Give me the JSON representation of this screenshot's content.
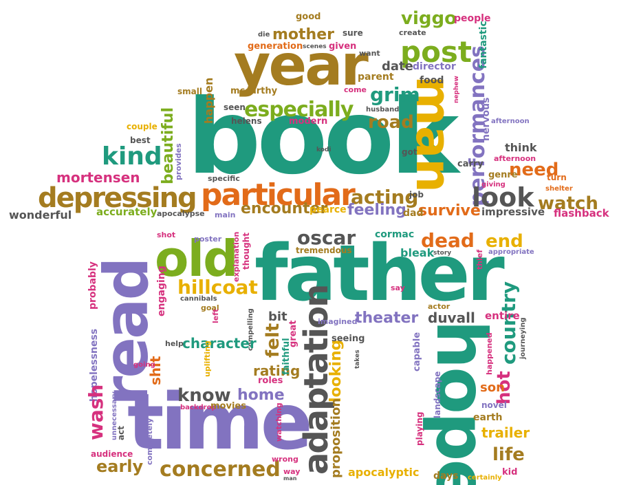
{
  "colors": {
    "brown": "#a47c20",
    "orange": "#e26b19",
    "green": "#7cad1e",
    "teal": "#1f9a7e",
    "purple": "#8273c0",
    "pink": "#d6317e",
    "gold": "#e8b000",
    "gray": "#555555"
  },
  "words": [
    {
      "text": "book",
      "color": "teal",
      "orient": "h"
    },
    {
      "text": "year",
      "color": "brown",
      "orient": "h"
    },
    {
      "text": "man",
      "color": "gold",
      "orient": "v"
    },
    {
      "text": "father",
      "color": "teal",
      "orient": "h"
    },
    {
      "text": "time",
      "color": "purple",
      "orient": "h"
    },
    {
      "text": "hope",
      "color": "teal",
      "orient": "v"
    },
    {
      "text": "read",
      "color": "purple",
      "orient": "v"
    },
    {
      "text": "old",
      "color": "green",
      "orient": "h"
    },
    {
      "text": "adaptation",
      "color": "gray",
      "orient": "v"
    },
    {
      "text": "particular",
      "color": "orange",
      "orient": "h"
    },
    {
      "text": "depressing",
      "color": "brown",
      "orient": "h"
    },
    {
      "text": "especially",
      "color": "green",
      "orient": "h"
    },
    {
      "text": "post",
      "color": "green",
      "orient": "h"
    },
    {
      "text": "performances",
      "color": "purple",
      "orient": "v"
    },
    {
      "text": "kind",
      "color": "teal",
      "orient": "h"
    },
    {
      "text": "look",
      "color": "gray",
      "orient": "h"
    },
    {
      "text": "watch",
      "color": "brown",
      "orient": "h"
    },
    {
      "text": "need",
      "color": "orange",
      "orient": "h"
    },
    {
      "text": "mother",
      "color": "brown",
      "orient": "h"
    },
    {
      "text": "viggo",
      "color": "green",
      "orient": "h"
    },
    {
      "text": "grim",
      "color": "teal",
      "orient": "h"
    },
    {
      "text": "road",
      "color": "brown",
      "orient": "h"
    },
    {
      "text": "date",
      "color": "gray",
      "orient": "h"
    },
    {
      "text": "acting",
      "color": "brown",
      "orient": "h"
    },
    {
      "text": "encounter",
      "color": "brown",
      "orient": "h"
    },
    {
      "text": "feeling",
      "color": "purple",
      "orient": "h"
    },
    {
      "text": "survive",
      "color": "orange",
      "orient": "h"
    },
    {
      "text": "mortensen",
      "color": "pink",
      "orient": "h"
    },
    {
      "text": "beautiful",
      "color": "green",
      "orient": "v"
    },
    {
      "text": "happen",
      "color": "brown",
      "orient": "v"
    },
    {
      "text": "fantastic",
      "color": "teal",
      "orient": "v"
    },
    {
      "text": "generation",
      "color": "orange",
      "orient": "h"
    },
    {
      "text": "given",
      "color": "pink",
      "orient": "h"
    },
    {
      "text": "good",
      "color": "brown",
      "orient": "h"
    },
    {
      "text": "sure",
      "color": "gray",
      "orient": "h"
    },
    {
      "text": "die",
      "color": "gray",
      "orient": "h"
    },
    {
      "text": "scenes",
      "color": "gray",
      "orient": "h"
    },
    {
      "text": "people",
      "color": "pink",
      "orient": "h"
    },
    {
      "text": "create",
      "color": "gray",
      "orient": "h"
    },
    {
      "text": "want",
      "color": "gray",
      "orient": "h"
    },
    {
      "text": "food",
      "color": "gray",
      "orient": "h"
    },
    {
      "text": "director",
      "color": "purple",
      "orient": "h"
    },
    {
      "text": "parent",
      "color": "brown",
      "orient": "h"
    },
    {
      "text": "nephew",
      "color": "pink",
      "orient": "v"
    },
    {
      "text": "come",
      "color": "pink",
      "orient": "h"
    },
    {
      "text": "husband",
      "color": "gray",
      "orient": "h"
    },
    {
      "text": "afternoon",
      "color": "purple",
      "orient": "h"
    },
    {
      "text": "nervous",
      "color": "purple",
      "orient": "v"
    },
    {
      "text": "mccarthy",
      "color": "brown",
      "orient": "h"
    },
    {
      "text": "small",
      "color": "brown",
      "orient": "h"
    },
    {
      "text": "seen",
      "color": "gray",
      "orient": "h"
    },
    {
      "text": "helens",
      "color": "gray",
      "orient": "h"
    },
    {
      "text": "modern",
      "color": "pink",
      "orient": "h"
    },
    {
      "text": "couple",
      "color": "gold",
      "orient": "h"
    },
    {
      "text": "best",
      "color": "gray",
      "orient": "h"
    },
    {
      "text": "provides",
      "color": "purple",
      "orient": "v"
    },
    {
      "text": "specific",
      "color": "gray",
      "orient": "h"
    },
    {
      "text": "kodi",
      "color": "gray",
      "orient": "h"
    },
    {
      "text": "got",
      "color": "gray",
      "orient": "h"
    },
    {
      "text": "think",
      "color": "gray",
      "orient": "h"
    },
    {
      "text": "afternoon",
      "color": "pink",
      "orient": "h"
    },
    {
      "text": "carry",
      "color": "gray",
      "orient": "h"
    },
    {
      "text": "genre",
      "color": "brown",
      "orient": "h"
    },
    {
      "text": "turn",
      "color": "orange",
      "orient": "h"
    },
    {
      "text": "giving",
      "color": "pink",
      "orient": "h"
    },
    {
      "text": "shelter",
      "color": "orange",
      "orient": "h"
    },
    {
      "text": "job",
      "color": "gray",
      "orient": "h"
    },
    {
      "text": "impressive",
      "color": "gray",
      "orient": "h"
    },
    {
      "text": "flashback",
      "color": "pink",
      "orient": "h"
    },
    {
      "text": "pearce",
      "color": "gold",
      "orient": "h"
    },
    {
      "text": "dad",
      "color": "brown",
      "orient": "h"
    },
    {
      "text": "main",
      "color": "purple",
      "orient": "h"
    },
    {
      "text": "apocalypse",
      "color": "gray",
      "orient": "h"
    },
    {
      "text": "accurately",
      "color": "green",
      "orient": "h"
    },
    {
      "text": "wonderful",
      "color": "gray",
      "orient": "h"
    },
    {
      "text": "shot",
      "color": "pink",
      "orient": "h"
    },
    {
      "text": "poster",
      "color": "purple",
      "orient": "h"
    },
    {
      "text": "thought",
      "color": "pink",
      "orient": "v"
    },
    {
      "text": "explanation",
      "color": "pink",
      "orient": "v"
    },
    {
      "text": "oscar",
      "color": "gray",
      "orient": "h"
    },
    {
      "text": "tremendous",
      "color": "brown",
      "orient": "h"
    },
    {
      "text": "cormac",
      "color": "teal",
      "orient": "h"
    },
    {
      "text": "dead",
      "color": "orange",
      "orient": "h"
    },
    {
      "text": "end",
      "color": "gold",
      "orient": "h"
    },
    {
      "text": "bleak",
      "color": "teal",
      "orient": "h"
    },
    {
      "text": "story",
      "color": "gray",
      "orient": "h"
    },
    {
      "text": "thief",
      "color": "pink",
      "orient": "v"
    },
    {
      "text": "appropriate",
      "color": "purple",
      "orient": "h"
    },
    {
      "text": "hillcoat",
      "color": "gold",
      "orient": "h"
    },
    {
      "text": "probably",
      "color": "pink",
      "orient": "v"
    },
    {
      "text": "engaging",
      "color": "pink",
      "orient": "v"
    },
    {
      "text": "cannibals",
      "color": "gray",
      "orient": "h"
    },
    {
      "text": "goal",
      "color": "brown",
      "orient": "h"
    },
    {
      "text": "say",
      "color": "pink",
      "orient": "h"
    },
    {
      "text": "actor",
      "color": "brown",
      "orient": "h"
    },
    {
      "text": "country",
      "color": "teal",
      "orient": "v"
    },
    {
      "text": "hot",
      "color": "pink",
      "orient": "v"
    },
    {
      "text": "theater",
      "color": "purple",
      "orient": "h"
    },
    {
      "text": "duvall",
      "color": "gray",
      "orient": "h"
    },
    {
      "text": "entire",
      "color": "pink",
      "orient": "h"
    },
    {
      "text": "journeying",
      "color": "gray",
      "orient": "v"
    },
    {
      "text": "imagined",
      "color": "purple",
      "orient": "h"
    },
    {
      "text": "bit",
      "color": "gray",
      "orient": "h"
    },
    {
      "text": "felt",
      "color": "brown",
      "orient": "v"
    },
    {
      "text": "great",
      "color": "pink",
      "orient": "v"
    },
    {
      "text": "compelling",
      "color": "gray",
      "orient": "v"
    },
    {
      "text": "left",
      "color": "pink",
      "orient": "v"
    },
    {
      "text": "character",
      "color": "teal",
      "orient": "h"
    },
    {
      "text": "help",
      "color": "gray",
      "orient": "h"
    },
    {
      "text": "shit",
      "color": "orange",
      "orient": "v"
    },
    {
      "text": "going",
      "color": "pink",
      "orient": "h"
    },
    {
      "text": "hopelessness",
      "color": "purple",
      "orient": "v"
    },
    {
      "text": "uplifting",
      "color": "gold",
      "orient": "v"
    },
    {
      "text": "rating",
      "color": "brown",
      "orient": "h"
    },
    {
      "text": "faithful",
      "color": "teal",
      "orient": "v"
    },
    {
      "text": "roles",
      "color": "pink",
      "orient": "h"
    },
    {
      "text": "looking",
      "color": "gold",
      "orient": "v"
    },
    {
      "text": "seeing",
      "color": "gray",
      "orient": "h"
    },
    {
      "text": "takes",
      "color": "gray",
      "orient": "v"
    },
    {
      "text": "capable",
      "color": "purple",
      "orient": "v"
    },
    {
      "text": "landscape",
      "color": "purple",
      "orient": "v"
    },
    {
      "text": "happened",
      "color": "pink",
      "orient": "v"
    },
    {
      "text": "son",
      "color": "orange",
      "orient": "h"
    },
    {
      "text": "know",
      "color": "gray",
      "orient": "h"
    },
    {
      "text": "home",
      "color": "purple",
      "orient": "h"
    },
    {
      "text": "wash",
      "color": "pink",
      "orient": "v"
    },
    {
      "text": "unnecessary",
      "color": "purple",
      "orient": "v"
    },
    {
      "text": "backdrop",
      "color": "pink",
      "orient": "h"
    },
    {
      "text": "movies",
      "color": "brown",
      "orient": "h"
    },
    {
      "text": "act",
      "color": "gray",
      "orient": "v"
    },
    {
      "text": "proposition",
      "color": "brown",
      "orient": "v"
    },
    {
      "text": "watching",
      "color": "pink",
      "orient": "v"
    },
    {
      "text": "novel",
      "color": "purple",
      "orient": "h"
    },
    {
      "text": "earth",
      "color": "brown",
      "orient": "h"
    },
    {
      "text": "playing",
      "color": "pink",
      "orient": "v"
    },
    {
      "text": "trailer",
      "color": "gold",
      "orient": "h"
    },
    {
      "text": "life",
      "color": "brown",
      "orient": "h"
    },
    {
      "text": "audience",
      "color": "pink",
      "orient": "h"
    },
    {
      "text": "completely",
      "color": "purple",
      "orient": "v"
    },
    {
      "text": "early",
      "color": "brown",
      "orient": "h"
    },
    {
      "text": "concerned",
      "color": "brown",
      "orient": "h"
    },
    {
      "text": "wrong",
      "color": "pink",
      "orient": "h"
    },
    {
      "text": "way",
      "color": "pink",
      "orient": "h"
    },
    {
      "text": "man",
      "color": "gray",
      "orient": "h"
    },
    {
      "text": "apocalyptic",
      "color": "gold",
      "orient": "h"
    },
    {
      "text": "days",
      "color": "brown",
      "orient": "h"
    },
    {
      "text": "certainly",
      "color": "gold",
      "orient": "h"
    },
    {
      "text": "kid",
      "color": "pink",
      "orient": "h"
    }
  ]
}
